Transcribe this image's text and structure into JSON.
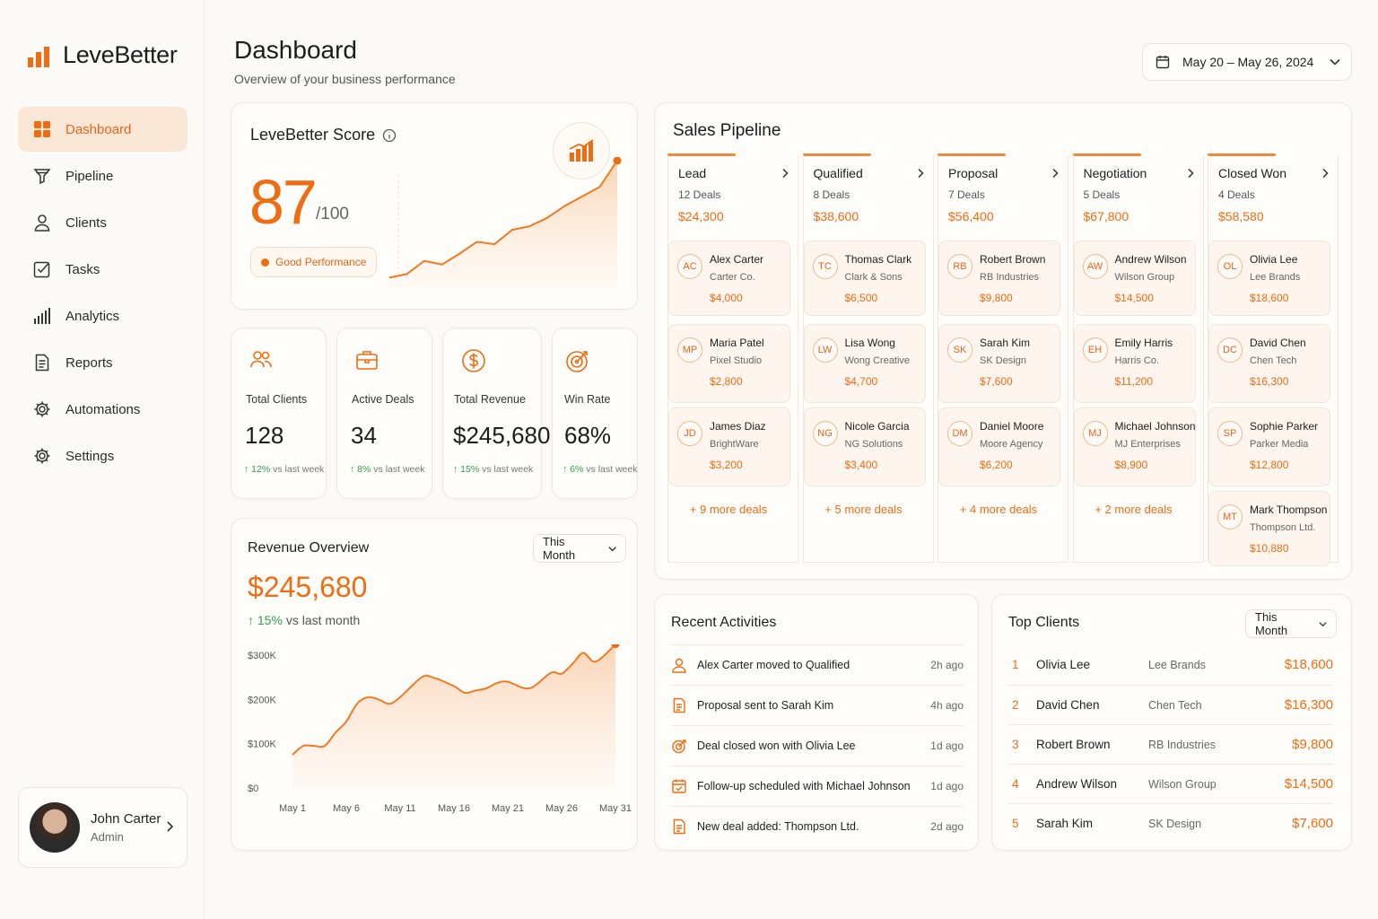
{
  "brand": {
    "name": "LeveBetter",
    "accent": "#ef6c12"
  },
  "sidebar": {
    "items": [
      {
        "label": "Dashboard",
        "icon": "grid-icon",
        "active": true
      },
      {
        "label": "Pipeline",
        "icon": "funnel-icon"
      },
      {
        "label": "Clients",
        "icon": "user-icon"
      },
      {
        "label": "Tasks",
        "icon": "checkbox-icon"
      },
      {
        "label": "Analytics",
        "icon": "bar-chart-icon"
      },
      {
        "label": "Reports",
        "icon": "document-icon"
      },
      {
        "label": "Automations",
        "icon": "gear-icon"
      },
      {
        "label": "Settings",
        "icon": "gear-icon"
      }
    ],
    "user": {
      "name": "John Carter",
      "role": "Admin"
    }
  },
  "header": {
    "title": "Dashboard",
    "subtitle": "Overview of your business performance",
    "date_range": "May 20 – May 26, 2024"
  },
  "score": {
    "title": "LeveBetter Score",
    "value": "87",
    "max": "/100",
    "badge": "Good Performance",
    "trend": [
      2,
      5,
      16,
      13,
      22,
      32,
      30,
      42,
      45,
      52,
      62,
      70,
      78,
      100
    ]
  },
  "stats": [
    {
      "label": "Total Clients",
      "value": "128",
      "delta": "12%",
      "delta_text": "vs last week",
      "icon": "users-icon"
    },
    {
      "label": "Active Deals",
      "value": "34",
      "delta": "8%",
      "delta_text": "vs last week",
      "icon": "briefcase-icon"
    },
    {
      "label": "Total Revenue",
      "value": "$245,680",
      "delta": "15%",
      "delta_text": "vs last week",
      "icon": "dollar-icon"
    },
    {
      "label": "Win Rate",
      "value": "68%",
      "delta": "6%",
      "delta_text": "vs last week",
      "icon": "target-icon"
    }
  ],
  "revenue": {
    "title": "Revenue Overview",
    "period": "This Month",
    "amount": "$245,680",
    "delta": "15%",
    "delta_text": "vs last month"
  },
  "chart_data": {
    "type": "area",
    "x": [
      "May 1",
      "May 6",
      "May 11",
      "May 16",
      "May 21",
      "May 26",
      "May 31"
    ],
    "yticks": [
      "$0",
      "$100K",
      "$200K",
      "$300K"
    ],
    "ylim": [
      0,
      300
    ],
    "points": [
      [
        1,
        75
      ],
      [
        2,
        95
      ],
      [
        3,
        95
      ],
      [
        4,
        95
      ],
      [
        5,
        125
      ],
      [
        6,
        150
      ],
      [
        7,
        190
      ],
      [
        8,
        205
      ],
      [
        9,
        200
      ],
      [
        10,
        190
      ],
      [
        11,
        205
      ],
      [
        13,
        250
      ],
      [
        14,
        250
      ],
      [
        16,
        230
      ],
      [
        17,
        215
      ],
      [
        18,
        220
      ],
      [
        19,
        225
      ],
      [
        20,
        237
      ],
      [
        21,
        240
      ],
      [
        23,
        225
      ],
      [
        25,
        260
      ],
      [
        26,
        258
      ],
      [
        27,
        280
      ],
      [
        28,
        305
      ],
      [
        29,
        285
      ],
      [
        30,
        300
      ],
      [
        31,
        325
      ]
    ]
  },
  "pipeline": {
    "title": "Sales Pipeline",
    "stages": [
      {
        "name": "Lead",
        "count": "12 Deals",
        "total": "$24,300",
        "more": "+ 9 more deals",
        "deals": [
          {
            "initials": "AC",
            "name": "Alex Carter",
            "company": "Carter Co.",
            "amount": "$4,000"
          },
          {
            "initials": "MP",
            "name": "Maria Patel",
            "company": "Pixel Studio",
            "amount": "$2,800"
          },
          {
            "initials": "JD",
            "name": "James Diaz",
            "company": "BrightWare",
            "amount": "$3,200"
          }
        ]
      },
      {
        "name": "Qualified",
        "count": "8 Deals",
        "total": "$38,600",
        "more": "+ 5 more deals",
        "deals": [
          {
            "initials": "TC",
            "name": "Thomas Clark",
            "company": "Clark & Sons",
            "amount": "$6,500"
          },
          {
            "initials": "LW",
            "name": "Lisa Wong",
            "company": "Wong Creative",
            "amount": "$4,700"
          },
          {
            "initials": "NG",
            "name": "Nicole Garcia",
            "company": "NG Solutions",
            "amount": "$3,400"
          }
        ]
      },
      {
        "name": "Proposal",
        "count": "7 Deals",
        "total": "$56,400",
        "more": "+ 4 more deals",
        "deals": [
          {
            "initials": "RB",
            "name": "Robert Brown",
            "company": "RB Industries",
            "amount": "$9,800"
          },
          {
            "initials": "SK",
            "name": "Sarah Kim",
            "company": "SK Design",
            "amount": "$7,600"
          },
          {
            "initials": "DM",
            "name": "Daniel Moore",
            "company": "Moore Agency",
            "amount": "$6,200"
          }
        ]
      },
      {
        "name": "Negotiation",
        "count": "5 Deals",
        "total": "$67,800",
        "more": "+ 2 more deals",
        "deals": [
          {
            "initials": "AW",
            "name": "Andrew Wilson",
            "company": "Wilson Group",
            "amount": "$14,500"
          },
          {
            "initials": "EH",
            "name": "Emily Harris",
            "company": "Harris Co.",
            "amount": "$11,200"
          },
          {
            "initials": "MJ",
            "name": "Michael Johnson",
            "company": "MJ Enterprises",
            "amount": "$8,900"
          }
        ]
      },
      {
        "name": "Closed Won",
        "count": "4 Deals",
        "total": "$58,580",
        "more": "",
        "deals": [
          {
            "initials": "OL",
            "name": "Olivia Lee",
            "company": "Lee Brands",
            "amount": "$18,600"
          },
          {
            "initials": "DC",
            "name": "David Chen",
            "company": "Chen Tech",
            "amount": "$16,300"
          },
          {
            "initials": "SP",
            "name": "Sophie Parker",
            "company": "Parker Media",
            "amount": "$12,800"
          },
          {
            "initials": "MT",
            "name": "Mark Thompson",
            "company": "Thompson Ltd.",
            "amount": "$10,880"
          }
        ]
      }
    ]
  },
  "activities": {
    "title": "Recent Activities",
    "items": [
      {
        "text": "Alex Carter moved to Qualified",
        "time": "2h ago",
        "icon": "user-icon"
      },
      {
        "text": "Proposal sent to Sarah Kim",
        "time": "4h ago",
        "icon": "document-icon"
      },
      {
        "text": "Deal closed won with Olivia Lee",
        "time": "1d ago",
        "icon": "target-icon"
      },
      {
        "text": "Follow-up scheduled with Michael Johnson",
        "time": "1d ago",
        "icon": "calendar-icon"
      },
      {
        "text": "New deal added: Thompson Ltd.",
        "time": "2d ago",
        "icon": "document-icon"
      }
    ]
  },
  "top_clients": {
    "title": "Top Clients",
    "period": "This Month",
    "items": [
      {
        "rank": "1",
        "name": "Olivia Lee",
        "company": "Lee Brands",
        "amount": "$18,600"
      },
      {
        "rank": "2",
        "name": "David Chen",
        "company": "Chen Tech",
        "amount": "$16,300"
      },
      {
        "rank": "3",
        "name": "Robert Brown",
        "company": "RB Industries",
        "amount": "$9,800"
      },
      {
        "rank": "4",
        "name": "Andrew Wilson",
        "company": "Wilson Group",
        "amount": "$14,500"
      },
      {
        "rank": "5",
        "name": "Sarah Kim",
        "company": "SK Design",
        "amount": "$7,600"
      }
    ]
  }
}
